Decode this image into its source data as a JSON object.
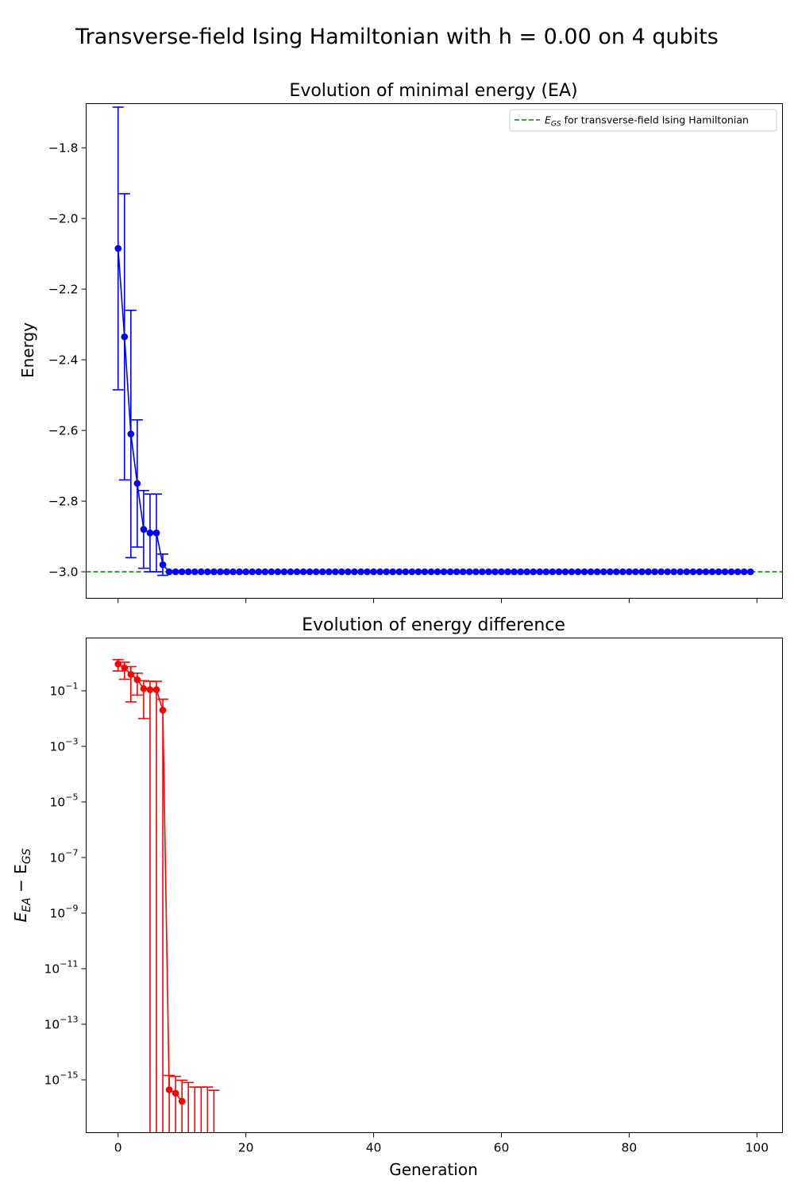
{
  "figure": {
    "suptitle": "Transverse-field Ising Hamiltonian with h = 0.00 on 4 qubits"
  },
  "colors": {
    "energy_series": "#0000ff",
    "difference_series": "#ff0000",
    "reference_line": "#008000"
  },
  "chart_data": [
    {
      "type": "line",
      "title": "Evolution of minimal energy (EA)",
      "xlabel": "",
      "ylabel": "Energy",
      "xlim": [
        -5,
        104
      ],
      "ylim": [
        -3.075,
        -1.675
      ],
      "xticks": [
        0,
        20,
        40,
        60,
        80,
        100
      ],
      "yticks": [
        -3.0,
        -2.8,
        -2.6,
        -2.4,
        -2.2,
        -2.0,
        -1.8
      ],
      "ytick_labels": [
        "−3.0",
        "−2.8",
        "−2.6",
        "−2.4",
        "−2.2",
        "−2.0",
        "−1.8"
      ],
      "grid": false,
      "legend": {
        "position": "top-right",
        "entries": [
          "E_GS for transverse-field Ising Hamiltonian"
        ]
      },
      "reference_line": {
        "y": -3.0,
        "style": "dashed",
        "label": "E_GS for transverse-field Ising Hamiltonian"
      },
      "series": [
        {
          "name": "",
          "markers": "circle",
          "x_start": 0,
          "x_end": 99,
          "y_head": [
            -2.085,
            -2.335,
            -2.61,
            -2.75,
            -2.88,
            -2.89,
            -2.89,
            -2.98
          ],
          "y_tail": -3.0,
          "err_low": [
            0.4,
            0.405,
            0.35,
            0.18,
            0.11,
            0.11,
            0.11,
            0.03
          ],
          "err_high": [
            0.4,
            0.405,
            0.35,
            0.18,
            0.11,
            0.11,
            0.11,
            0.03
          ]
        }
      ]
    },
    {
      "type": "line",
      "title": "Evolution of energy difference",
      "xlabel": "Generation",
      "ylabel_main": "E",
      "ylabel_sub1": "EA",
      "ylabel_mid": " − E",
      "ylabel_sub2": "GS",
      "xlim": [
        -5,
        104
      ],
      "yscale": "log",
      "ylim_exp": [
        -16.9,
        0.9
      ],
      "xticks": [
        0,
        20,
        40,
        60,
        80,
        100
      ],
      "ytick_exponents": [
        -1,
        -3,
        -5,
        -7,
        -9,
        -11,
        -13,
        -15
      ],
      "ytick_labels": [
        "−1",
        "−3",
        "−5",
        "−7",
        "−9",
        "−11",
        "−13",
        "−15"
      ],
      "ytick_base": "10",
      "grid": false,
      "series": [
        {
          "name": "",
          "markers": "circle",
          "x": [
            0,
            1,
            2,
            3,
            4,
            5,
            6,
            7,
            8,
            9,
            10
          ],
          "y": [
            0.915,
            0.665,
            0.39,
            0.25,
            0.12,
            0.11,
            0.11,
            0.02,
            4.4e-16,
            3.3e-16,
            1.7e-16
          ],
          "err_low": [
            0.4,
            0.405,
            0.35,
            0.18,
            0.11,
            0.11,
            0.11,
            0.03,
            0.01,
            0.01,
            0.01
          ],
          "err_high": [
            0.4,
            0.405,
            0.35,
            0.18,
            0.11,
            0.11,
            0.11,
            0.03,
            1e-15,
            1e-15,
            8e-16
          ],
          "errorbars_only": {
            "x": [
              11,
              12,
              13,
              14,
              15
            ],
            "err_high": [
              8e-16,
              5.5e-16,
              5.5e-16,
              5.5e-16,
              4.2e-16
            ]
          }
        }
      ]
    }
  ]
}
